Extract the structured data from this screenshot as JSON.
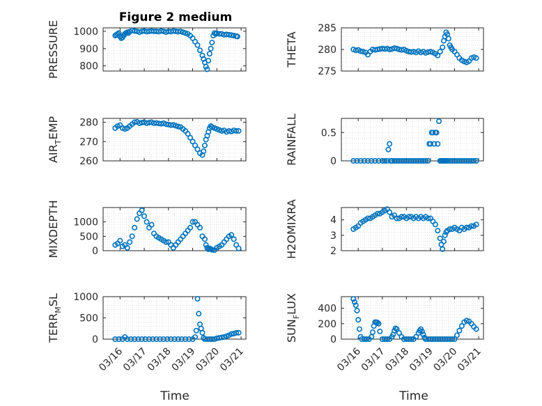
{
  "figure": {
    "title": "Figure 2 medium",
    "xlabel": "Time",
    "x_tick_labels": [
      "03/16",
      "03/17",
      "03/18",
      "03/19",
      "03/20",
      "03/21"
    ]
  },
  "colors": {
    "marker": "#0072BD",
    "grid": "#dcdcdc",
    "axis": "#262626"
  },
  "chart_data": [
    {
      "type": "scatter",
      "ylabel": "PRESSURE",
      "xlim": [
        3.86,
        5.04
      ],
      "ylim": [
        770,
        1020
      ],
      "yticks": [
        800,
        900,
        1000
      ],
      "x": [
        3.96,
        3.97,
        3.98,
        3.99,
        4.0,
        4.01,
        4.02,
        4.03,
        4.04,
        4.05,
        4.06,
        4.07,
        4.08,
        4.1,
        4.12,
        4.14,
        4.16,
        4.18,
        4.2,
        4.22,
        4.24,
        4.26,
        4.28,
        4.3,
        4.32,
        4.34,
        4.36,
        4.38,
        4.4,
        4.42,
        4.44,
        4.46,
        4.48,
        4.5,
        4.52,
        4.54,
        4.56,
        4.58,
        4.6,
        4.62,
        4.64,
        4.66,
        4.68,
        4.69,
        4.7,
        4.71,
        4.72,
        4.73,
        4.74,
        4.75,
        4.76,
        4.77,
        4.78,
        4.79,
        4.8,
        4.82,
        4.84,
        4.86,
        4.88,
        4.9,
        4.92,
        4.94,
        4.96,
        4.97
      ],
      "y": [
        975,
        980,
        985,
        990,
        970,
        960,
        965,
        975,
        985,
        990,
        995,
        990,
        998,
        1005,
        1002,
        1000,
        995,
        1000,
        1002,
        998,
        1000,
        1002,
        1000,
        1000,
        998,
        1002,
        1000,
        995,
        1000,
        998,
        1002,
        1000,
        998,
        1000,
        995,
        990,
        985,
        975,
        960,
        940,
        920,
        890,
        860,
        840,
        820,
        795,
        780,
        830,
        870,
        900,
        935,
        975,
        990,
        985,
        988,
        985,
        985,
        980,
        982,
        980,
        978,
        975,
        972,
        970
      ]
    },
    {
      "type": "scatter",
      "ylabel": "THETA",
      "xlim": [
        3.86,
        5.04
      ],
      "ylim": [
        275,
        285
      ],
      "yticks": [
        275,
        280,
        285
      ],
      "x": [
        3.96,
        3.98,
        4.0,
        4.02,
        4.04,
        4.06,
        4.08,
        4.1,
        4.12,
        4.14,
        4.16,
        4.18,
        4.2,
        4.22,
        4.24,
        4.26,
        4.28,
        4.3,
        4.32,
        4.34,
        4.36,
        4.38,
        4.4,
        4.42,
        4.44,
        4.46,
        4.48,
        4.5,
        4.52,
        4.54,
        4.56,
        4.58,
        4.6,
        4.62,
        4.64,
        4.66,
        4.68,
        4.7,
        4.71,
        4.72,
        4.73,
        4.74,
        4.75,
        4.76,
        4.77,
        4.78,
        4.8,
        4.82,
        4.84,
        4.86,
        4.88,
        4.9,
        4.92,
        4.94,
        4.96,
        4.98
      ],
      "y": [
        280,
        279.8,
        279.9,
        279.6,
        279.5,
        279.3,
        278.8,
        279.5,
        280,
        279.9,
        280,
        280.1,
        280.2,
        280.1,
        280.2,
        280,
        280.1,
        280.3,
        280.2,
        280,
        279.9,
        280,
        279.7,
        279.5,
        279.4,
        279.5,
        279.3,
        279.6,
        279.3,
        279.5,
        279.2,
        279.4,
        279.5,
        279.3,
        279.0,
        278.6,
        279.5,
        280.5,
        282,
        283,
        284,
        283.5,
        282.5,
        281,
        280.5,
        280,
        279.5,
        278.8,
        278,
        277.5,
        277.2,
        277.0,
        277.3,
        278.0,
        278.2,
        278.0
      ]
    },
    {
      "type": "scatter",
      "ylabel": "AIR_TEMP",
      "xlim": [
        3.86,
        5.04
      ],
      "ylim": [
        260,
        282
      ],
      "yticks": [
        260,
        270,
        280
      ],
      "x": [
        3.96,
        3.98,
        4.0,
        4.02,
        4.04,
        4.06,
        4.08,
        4.1,
        4.12,
        4.14,
        4.16,
        4.18,
        4.2,
        4.22,
        4.24,
        4.26,
        4.28,
        4.3,
        4.32,
        4.34,
        4.36,
        4.38,
        4.4,
        4.42,
        4.44,
        4.46,
        4.48,
        4.5,
        4.52,
        4.54,
        4.56,
        4.58,
        4.6,
        4.62,
        4.64,
        4.66,
        4.68,
        4.69,
        4.7,
        4.71,
        4.72,
        4.73,
        4.74,
        4.75,
        4.76,
        4.78,
        4.8,
        4.82,
        4.84,
        4.86,
        4.88,
        4.9,
        4.92,
        4.94,
        4.96,
        4.98
      ],
      "y": [
        277,
        278,
        278.5,
        277,
        276.5,
        277,
        278,
        279,
        280,
        280.2,
        279.5,
        279.8,
        280,
        279.5,
        279.8,
        280,
        279.5,
        279.6,
        279.4,
        279.2,
        279.5,
        279,
        278.8,
        278.5,
        278.6,
        278.2,
        277.8,
        277.5,
        276.5,
        275.5,
        274,
        272,
        270,
        268,
        266,
        264,
        263,
        265,
        268,
        271,
        273,
        275,
        277,
        278,
        277.5,
        277,
        276.5,
        276,
        275.5,
        275.8,
        275,
        275.5,
        275.2,
        275.8,
        275.5,
        275.5
      ]
    },
    {
      "type": "scatter",
      "ylabel": "RAINFALL",
      "xlim": [
        3.86,
        5.04
      ],
      "ylim": [
        0,
        0.75
      ],
      "yticks": [
        0,
        0.5
      ],
      "x": [
        3.96,
        3.99,
        4.02,
        4.05,
        4.08,
        4.11,
        4.14,
        4.17,
        4.2,
        4.22,
        4.24,
        4.25,
        4.26,
        4.27,
        4.28,
        4.3,
        4.32,
        4.34,
        4.36,
        4.38,
        4.4,
        4.42,
        4.44,
        4.46,
        4.48,
        4.5,
        4.52,
        4.54,
        4.56,
        4.58,
        4.59,
        4.6,
        4.61,
        4.62,
        4.63,
        4.64,
        4.65,
        4.66,
        4.67,
        4.68,
        4.69,
        4.7,
        4.71,
        4.72,
        4.73,
        4.74,
        4.76,
        4.78,
        4.8,
        4.82,
        4.84,
        4.86,
        4.88,
        4.9,
        4.92,
        4.94,
        4.96,
        4.98
      ],
      "y": [
        0,
        0,
        0,
        0,
        0,
        0,
        0,
        0,
        0,
        0,
        0,
        0.2,
        0.3,
        0,
        0,
        0,
        0,
        0,
        0,
        0,
        0,
        0,
        0,
        0,
        0,
        0,
        0,
        0,
        0,
        0,
        0.3,
        0.3,
        0.5,
        0.5,
        0.3,
        0.5,
        0.5,
        0.3,
        0.7,
        0,
        0,
        0,
        0,
        0,
        0,
        0,
        0,
        0,
        0,
        0,
        0,
        0,
        0,
        0,
        0,
        0,
        0,
        0
      ]
    },
    {
      "type": "scatter",
      "ylabel": "MIXDEPTH",
      "xlim": [
        3.86,
        5.04
      ],
      "ylim": [
        0,
        1500
      ],
      "yticks": [
        0,
        500,
        1000
      ],
      "x": [
        3.96,
        3.98,
        4.0,
        4.02,
        4.04,
        4.06,
        4.08,
        4.1,
        4.12,
        4.14,
        4.16,
        4.18,
        4.2,
        4.22,
        4.24,
        4.26,
        4.28,
        4.3,
        4.32,
        4.34,
        4.36,
        4.38,
        4.4,
        4.42,
        4.44,
        4.46,
        4.48,
        4.5,
        4.52,
        4.54,
        4.56,
        4.58,
        4.6,
        4.62,
        4.64,
        4.66,
        4.68,
        4.7,
        4.71,
        4.72,
        4.73,
        4.74,
        4.75,
        4.76,
        4.78,
        4.8,
        4.82,
        4.84,
        4.86,
        4.88,
        4.9,
        4.92,
        4.94,
        4.96,
        4.98
      ],
      "y": [
        200,
        250,
        350,
        150,
        200,
        100,
        300,
        500,
        800,
        1100,
        1300,
        1400,
        1200,
        1000,
        800,
        900,
        600,
        500,
        450,
        400,
        350,
        300,
        300,
        200,
        100,
        200,
        300,
        400,
        500,
        600,
        700,
        800,
        1000,
        1000,
        900,
        800,
        500,
        400,
        200,
        100,
        50,
        80,
        60,
        30,
        20,
        100,
        150,
        200,
        300,
        400,
        500,
        550,
        400,
        200,
        80
      ]
    },
    {
      "type": "scatter",
      "ylabel": "H2OMIXRA",
      "xlim": [
        3.86,
        5.04
      ],
      "ylim": [
        2,
        4.8
      ],
      "yticks": [
        2,
        3,
        4
      ],
      "x": [
        3.96,
        3.98,
        4.0,
        4.02,
        4.04,
        4.06,
        4.08,
        4.1,
        4.12,
        4.14,
        4.16,
        4.18,
        4.2,
        4.22,
        4.24,
        4.26,
        4.28,
        4.3,
        4.32,
        4.34,
        4.36,
        4.38,
        4.4,
        4.42,
        4.44,
        4.46,
        4.48,
        4.5,
        4.52,
        4.54,
        4.56,
        4.58,
        4.6,
        4.62,
        4.64,
        4.66,
        4.68,
        4.69,
        4.7,
        4.71,
        4.72,
        4.73,
        4.74,
        4.76,
        4.78,
        4.8,
        4.82,
        4.84,
        4.86,
        4.88,
        4.9,
        4.92,
        4.94,
        4.96,
        4.98
      ],
      "y": [
        3.4,
        3.5,
        3.6,
        3.8,
        3.9,
        4.0,
        4.1,
        4.1,
        4.2,
        4.3,
        4.4,
        4.4,
        4.5,
        4.6,
        4.7,
        4.5,
        4.2,
        4.3,
        4.1,
        4.1,
        4.2,
        4.2,
        4.1,
        4.2,
        4.2,
        4.1,
        4.2,
        4.1,
        4.2,
        4.1,
        4.2,
        4.1,
        4.1,
        3.9,
        3.7,
        3.3,
        2.8,
        2.4,
        2.1,
        2.6,
        3.0,
        3.2,
        3.3,
        3.4,
        3.4,
        3.5,
        3.4,
        3.3,
        3.5,
        3.4,
        3.5,
        3.5,
        3.6,
        3.6,
        3.7
      ]
    },
    {
      "type": "scatter",
      "ylabel": "TERR_MSL",
      "xlim": [
        3.86,
        5.04
      ],
      "ylim": [
        0,
        1000
      ],
      "yticks": [
        0,
        500,
        1000
      ],
      "x": [
        3.96,
        3.99,
        4.02,
        4.04,
        4.06,
        4.09,
        4.12,
        4.15,
        4.18,
        4.21,
        4.24,
        4.27,
        4.3,
        4.33,
        4.36,
        4.39,
        4.42,
        4.45,
        4.48,
        4.51,
        4.54,
        4.57,
        4.6,
        4.62,
        4.63,
        4.64,
        4.65,
        4.66,
        4.67,
        4.68,
        4.69,
        4.7,
        4.72,
        4.74,
        4.76,
        4.78,
        4.8,
        4.82,
        4.84,
        4.86,
        4.88,
        4.9,
        4.92,
        4.94,
        4.96,
        4.98
      ],
      "y": [
        0,
        0,
        0,
        50,
        0,
        0,
        0,
        0,
        0,
        0,
        0,
        0,
        0,
        0,
        0,
        0,
        0,
        0,
        0,
        0,
        0,
        0,
        0,
        50,
        200,
        950,
        600,
        350,
        250,
        150,
        30,
        0,
        0,
        0,
        0,
        0,
        20,
        30,
        40,
        50,
        70,
        90,
        120,
        130,
        150,
        150
      ]
    },
    {
      "type": "scatter",
      "ylabel": "SUN_FLUX",
      "xlim": [
        3.86,
        5.04
      ],
      "ylim": [
        0,
        550
      ],
      "yticks": [
        0,
        200,
        400
      ],
      "x": [
        3.96,
        3.97,
        3.98,
        3.99,
        4.0,
        4.01,
        4.02,
        4.03,
        4.05,
        4.07,
        4.09,
        4.11,
        4.12,
        4.13,
        4.14,
        4.15,
        4.16,
        4.17,
        4.18,
        4.2,
        4.22,
        4.24,
        4.26,
        4.28,
        4.29,
        4.3,
        4.31,
        4.32,
        4.34,
        4.36,
        4.38,
        4.4,
        4.42,
        4.44,
        4.46,
        4.48,
        4.5,
        4.51,
        4.52,
        4.53,
        4.54,
        4.55,
        4.56,
        4.58,
        4.6,
        4.62,
        4.64,
        4.66,
        4.68,
        4.7,
        4.72,
        4.74,
        4.76,
        4.78,
        4.8,
        4.82,
        4.84,
        4.86,
        4.88,
        4.9,
        4.92,
        4.94,
        4.96,
        4.98
      ],
      "y": [
        520,
        480,
        440,
        370,
        250,
        130,
        30,
        0,
        0,
        0,
        0,
        30,
        90,
        170,
        220,
        220,
        215,
        200,
        100,
        0,
        0,
        0,
        0,
        30,
        60,
        110,
        140,
        130,
        80,
        30,
        0,
        0,
        0,
        0,
        0,
        30,
        80,
        110,
        130,
        100,
        60,
        20,
        0,
        0,
        0,
        0,
        0,
        0,
        0,
        0,
        0,
        0,
        0,
        0,
        0,
        50,
        110,
        170,
        220,
        240,
        230,
        200,
        160,
        130
      ]
    }
  ]
}
